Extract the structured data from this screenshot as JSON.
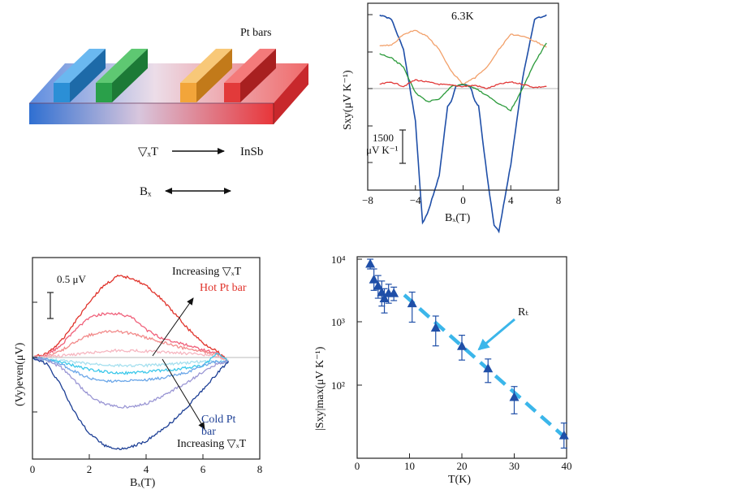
{
  "panel_a": {
    "pt_bars_label": "Pt bars",
    "gradient_label": "▽ₓT",
    "material_label": "InSb",
    "field_label": "Bₓ",
    "bar_colors": [
      "#2b8fd6",
      "#2aa04a",
      "#f2a53a",
      "#e23a3a"
    ]
  },
  "chart_data": [
    {
      "id": "panel_b",
      "type": "line",
      "title": "6.3K",
      "xlabel": "Bₓ(T)",
      "ylabel": "Sxy(μV K⁻¹)",
      "xlim": [
        -8,
        8
      ],
      "x_ticks": [
        "−8",
        "−4",
        "0",
        "4",
        "8"
      ],
      "scale_bar_label": [
        "1500",
        "μV K⁻¹"
      ],
      "series": [
        {
          "name": "blue",
          "color": "#1f4fa8",
          "x": [
            -7,
            -6,
            -5,
            -4,
            -3.4,
            -3,
            -2,
            -1.3,
            -1,
            -0.6,
            0,
            0.6,
            1,
            1.3,
            2,
            2.6,
            3,
            4,
            5,
            6,
            7
          ],
          "y": [
            3400,
            3200,
            1800,
            -1500,
            -6200,
            -5800,
            -4000,
            -800,
            -600,
            100,
            200,
            100,
            -600,
            -800,
            -4000,
            -6300,
            -6600,
            -3500,
            500,
            3200,
            3400
          ]
        },
        {
          "name": "orange",
          "color": "#f2a06a",
          "x": [
            -7,
            -6,
            -5,
            -4,
            -3,
            -2,
            -1,
            0,
            1,
            2,
            3,
            4,
            5,
            6,
            7
          ],
          "y": [
            2000,
            2000,
            2500,
            2700,
            2400,
            1800,
            800,
            200,
            500,
            1000,
            1800,
            2500,
            2400,
            2200,
            1900
          ]
        },
        {
          "name": "green",
          "color": "#2a9a3a",
          "x": [
            -7,
            -6,
            -5,
            -4,
            -3,
            -2,
            -1,
            0,
            1,
            2,
            3,
            4,
            5,
            6,
            7
          ],
          "y": [
            1600,
            1400,
            1000,
            -200,
            -600,
            -500,
            100,
            200,
            0,
            -300,
            -700,
            -1000,
            0,
            1200,
            2100
          ]
        },
        {
          "name": "red",
          "color": "#e23a3a",
          "x": [
            -7,
            -6,
            -5,
            -4,
            -3,
            -2,
            -1,
            0,
            1,
            2,
            3,
            4,
            5,
            6,
            7
          ],
          "y": [
            200,
            300,
            100,
            400,
            300,
            200,
            150,
            100,
            150,
            0,
            200,
            300,
            200,
            50,
            100
          ]
        }
      ]
    },
    {
      "id": "panel_c",
      "type": "line",
      "xlabel": "Bₓ(T)",
      "ylabel": "(Vy)even(μV)",
      "xlim": [
        0,
        8
      ],
      "x_ticks": [
        "0",
        "2",
        "4",
        "6",
        "8"
      ],
      "scale_bar_label": "0.5 μV",
      "annotation_up": "Increasing ▽ₓT",
      "annotation_hot": "Hot Pt bar",
      "annotation_cold": [
        "Cold Pt",
        "bar"
      ],
      "annotation_down": "Increasing ▽ₓT",
      "series": [
        {
          "name": "red-top",
          "color": "#e0322a",
          "x": [
            0,
            0.5,
            1,
            1.5,
            2,
            2.5,
            3,
            3.5,
            4,
            4.5,
            5,
            5.5,
            6,
            6.5,
            6.9
          ],
          "y": [
            0,
            0.05,
            0.2,
            0.45,
            0.7,
            0.9,
            1.02,
            1.0,
            0.9,
            0.75,
            0.55,
            0.35,
            0.18,
            0.08,
            -0.05
          ]
        },
        {
          "name": "pink",
          "color": "#f0607a",
          "x": [
            0,
            0.5,
            1,
            1.5,
            2,
            2.5,
            3,
            3.5,
            4,
            4.5,
            5,
            5.5,
            6,
            6.5,
            6.9
          ],
          "y": [
            0,
            0.03,
            0.15,
            0.35,
            0.5,
            0.55,
            0.55,
            0.5,
            0.35,
            0.25,
            0.2,
            0.15,
            0.1,
            0.05,
            -0.05
          ]
        },
        {
          "name": "light-red",
          "color": "#f28a8a",
          "x": [
            0,
            0.5,
            1,
            1.5,
            2,
            2.5,
            3,
            3.5,
            4,
            4.5,
            5,
            5.5,
            6,
            6.5,
            6.9
          ],
          "y": [
            0,
            0.02,
            0.08,
            0.2,
            0.28,
            0.32,
            0.33,
            0.3,
            0.25,
            0.2,
            0.15,
            0.1,
            0.08,
            0.03,
            -0.05
          ]
        },
        {
          "name": "pale-pink",
          "color": "#f6b6c0",
          "x": [
            0,
            1,
            2,
            3,
            4,
            5,
            6,
            6.9
          ],
          "y": [
            0,
            0.02,
            0.06,
            0.09,
            0.08,
            0.06,
            0.04,
            -0.03
          ]
        },
        {
          "name": "pale-cyan",
          "color": "#a6e0ef",
          "x": [
            0,
            1,
            2,
            3,
            4,
            5,
            6,
            6.9
          ],
          "y": [
            0,
            -0.04,
            -0.08,
            -0.1,
            -0.1,
            -0.08,
            -0.05,
            -0.05
          ]
        },
        {
          "name": "cyan",
          "color": "#3cc8ea",
          "x": [
            0,
            1,
            2,
            3,
            4,
            5,
            6,
            6.5,
            6.9
          ],
          "y": [
            0,
            -0.06,
            -0.15,
            -0.2,
            -0.18,
            -0.15,
            -0.1,
            0.05,
            -0.05
          ]
        },
        {
          "name": "sky-blue",
          "color": "#6aa6e8",
          "x": [
            0,
            0.5,
            1,
            1.5,
            2,
            2.5,
            3,
            3.5,
            4,
            4.5,
            5,
            5.5,
            6,
            6.5,
            6.9
          ],
          "y": [
            0,
            -0.02,
            -0.08,
            -0.18,
            -0.26,
            -0.3,
            -0.3,
            -0.28,
            -0.28,
            -0.26,
            -0.22,
            -0.18,
            -0.1,
            -0.05,
            -0.05
          ]
        },
        {
          "name": "lavender",
          "color": "#9a96d4",
          "x": [
            0,
            0.5,
            1,
            1.5,
            2,
            2.5,
            3,
            3.5,
            4,
            4.5,
            5,
            5.5,
            6,
            6.5,
            6.9
          ],
          "y": [
            0,
            -0.03,
            -0.12,
            -0.3,
            -0.48,
            -0.58,
            -0.62,
            -0.62,
            -0.58,
            -0.5,
            -0.4,
            -0.3,
            -0.18,
            -0.08,
            -0.05
          ]
        },
        {
          "name": "navy",
          "color": "#1d3f95",
          "x": [
            0,
            0.5,
            1,
            1.5,
            2,
            2.5,
            3,
            3.5,
            4,
            4.5,
            5,
            5.5,
            6,
            6.5,
            6.9
          ],
          "y": [
            0,
            -0.08,
            -0.35,
            -0.7,
            -0.95,
            -1.1,
            -1.15,
            -1.12,
            -1.05,
            -0.92,
            -0.78,
            -0.6,
            -0.4,
            -0.2,
            -0.05
          ]
        }
      ]
    },
    {
      "id": "panel_d",
      "type": "scatter",
      "xlabel": "T(K)",
      "ylabel": "|Sxy|max(μV K⁻¹)",
      "xlim": [
        0,
        40
      ],
      "x_ticks": [
        "0",
        "10",
        "20",
        "30",
        "40"
      ],
      "y_ticks": [
        "10⁴",
        "10³",
        "10²"
      ],
      "annotation": "Rₜ",
      "marker_color": "#1f4fa8",
      "fit_color": "#3bb6ea",
      "points": [
        {
          "x": 2.5,
          "y": 8500,
          "lo": 7000,
          "hi": 10000
        },
        {
          "x": 3.2,
          "y": 4800,
          "lo": 3200,
          "hi": 7000
        },
        {
          "x": 4.0,
          "y": 3800,
          "lo": 2400,
          "hi": 5500
        },
        {
          "x": 4.7,
          "y": 3000,
          "lo": 1800,
          "hi": 4500
        },
        {
          "x": 5.2,
          "y": 2400,
          "lo": 1400,
          "hi": 3400
        },
        {
          "x": 6.0,
          "y": 2900,
          "lo": 2000,
          "hi": 4000
        },
        {
          "x": 7.0,
          "y": 2900,
          "lo": 2200,
          "hi": 3600
        },
        {
          "x": 10.5,
          "y": 2000,
          "lo": 1000,
          "hi": 3000
        },
        {
          "x": 15,
          "y": 820,
          "lo": 420,
          "hi": 1250
        },
        {
          "x": 20,
          "y": 420,
          "lo": 250,
          "hi": 620
        },
        {
          "x": 25,
          "y": 185,
          "lo": 110,
          "hi": 260
        },
        {
          "x": 30,
          "y": 65,
          "lo": 35,
          "hi": 95
        },
        {
          "x": 39.5,
          "y": 16,
          "lo": 10,
          "hi": 25
        }
      ],
      "fit": {
        "x": [
          9,
          40
        ],
        "y": [
          2700,
          14
        ]
      }
    }
  ]
}
